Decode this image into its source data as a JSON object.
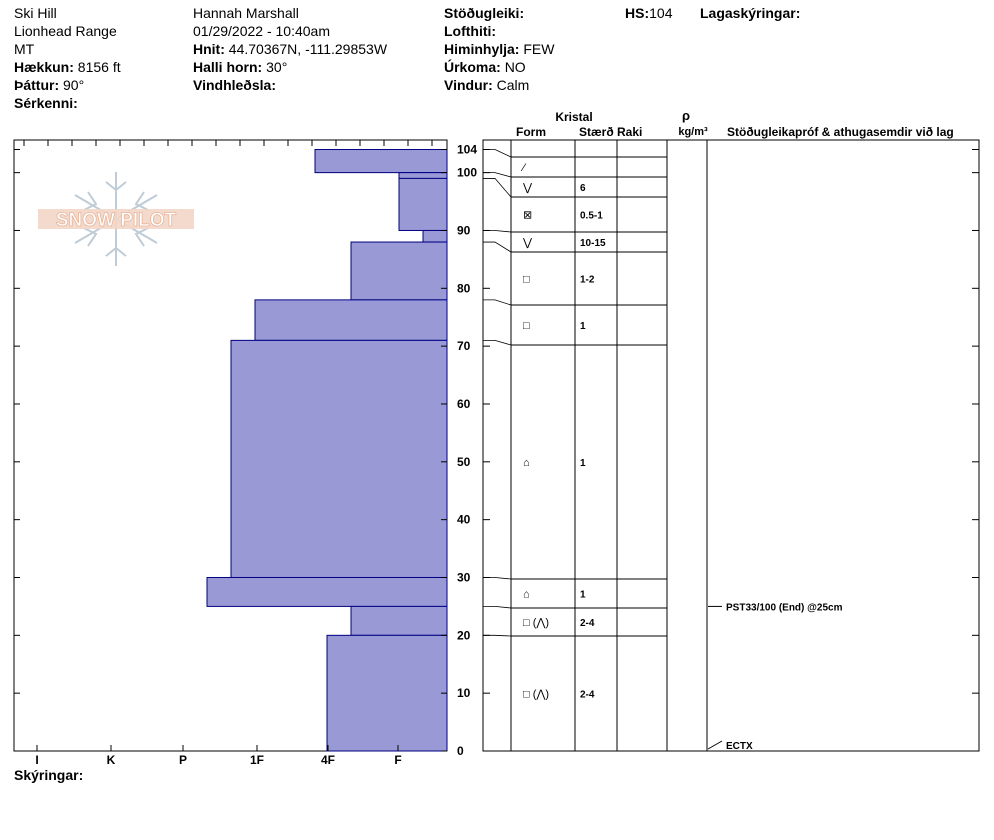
{
  "header": {
    "location": "Ski Hill",
    "range": "Lionhead Range",
    "state": "MT",
    "elevation_label": "Hækkun:",
    "elevation": "8156 ft",
    "aspect_label": "Þáttur:",
    "aspect": "90°",
    "features_label": "Sérkenni:",
    "observer": "Hannah Marshall",
    "datetime": "01/29/2022 - 10:40am",
    "coords_label": "Hnit:",
    "coords": "44.70367N, -111.29853W",
    "slope_label": "Halli horn:",
    "slope": "30°",
    "windload_label": "Vindhleðsla:",
    "stability_label": "Stöðugleiki:",
    "airtemp_label": "Lofthiti:",
    "sky_label": "Himinhylja:",
    "sky": "FEW",
    "precip_label": "Úrkoma:",
    "precip": "NO",
    "wind_label": "Vindur:",
    "wind": "Calm",
    "hs_label": "HS:",
    "hs": "104",
    "layer_notes_label": "Lagaskýringar:"
  },
  "logo_text": "SNOW PILOT",
  "footer": {
    "notes_label": "Skýringar:"
  },
  "colors": {
    "bar_fill": "#9999d6",
    "bar_stroke": "#000080"
  },
  "chart_data": {
    "type": "bar",
    "ylim": [
      0,
      104
    ],
    "y_ticks": [
      0,
      10,
      20,
      30,
      40,
      50,
      60,
      70,
      80,
      90,
      100,
      104
    ],
    "hardness_ticks": [
      "I",
      "K",
      "P",
      "1F",
      "4F",
      "F"
    ],
    "columns": {
      "crystal_header": "Kristal",
      "form": "Form",
      "size": "Stærð",
      "moisture": "Raki",
      "density_symbol": "ρ",
      "density_unit": "kg/m³",
      "comments": "Stöðugleikapróf & athugasemdir við lag"
    },
    "layers": [
      {
        "top": 104,
        "bottom": 100,
        "hardness": 5.5,
        "form": "⁄",
        "size": ""
      },
      {
        "top": 100,
        "bottom": 99,
        "hardness": 2.0,
        "form": "",
        "size": ""
      },
      {
        "top": 99,
        "bottom": 90,
        "hardness": 2.0,
        "form": "⋁",
        "size": "6"
      },
      {
        "top": 90,
        "bottom": 88,
        "hardness": 1.0,
        "form": "⊠",
        "size": "0.5-1"
      },
      {
        "top": 88,
        "bottom": 78,
        "hardness": 4.0,
        "form": "⋁",
        "size": "10-15"
      },
      {
        "top": 78,
        "bottom": 71,
        "hardness": 8.0,
        "form": "□",
        "size": "1-2"
      },
      {
        "top": 71,
        "bottom": 30,
        "hardness": 9.0,
        "form": "□",
        "size": "1"
      },
      {
        "top": 30,
        "bottom": 25,
        "hardness": 10.0,
        "form": "⌂",
        "size": "1"
      },
      {
        "top": 25,
        "bottom": 20,
        "hardness": 4.0,
        "form": "⌂",
        "size": "1"
      },
      {
        "top": 20,
        "bottom": 0,
        "hardness": 5.0,
        "form": "□ (⋀)",
        "size": "2-4"
      }
    ],
    "grain_rows": [
      {
        "top": 104,
        "bottom": 100,
        "form": "⁄",
        "size": ""
      },
      {
        "top": 100,
        "bottom": 99,
        "form": "⋁",
        "size": "6"
      },
      {
        "top": 99,
        "bottom": 90,
        "form": "⊠",
        "size": "0.5-1"
      },
      {
        "top": 90,
        "bottom": 88,
        "form": "⋁",
        "size": "10-15"
      },
      {
        "top": 88,
        "bottom": 78,
        "form": "□",
        "size": "1-2"
      },
      {
        "top": 78,
        "bottom": 71,
        "form": "□",
        "size": "1"
      },
      {
        "top": 71,
        "bottom": 30,
        "form": "⌂",
        "size": "1"
      },
      {
        "top": 30,
        "bottom": 25,
        "form": "⌂",
        "size": "1"
      },
      {
        "top": 25,
        "bottom": 20,
        "form": "□ (⋀)",
        "size": "2-4"
      },
      {
        "top": 20,
        "bottom": 0,
        "form": "□ (⋀)",
        "size": "2-4"
      }
    ],
    "annotations": [
      {
        "depth": 25,
        "text": "PST33/100 (End) @25cm"
      },
      {
        "depth": 0,
        "text": "ECTX"
      }
    ]
  }
}
